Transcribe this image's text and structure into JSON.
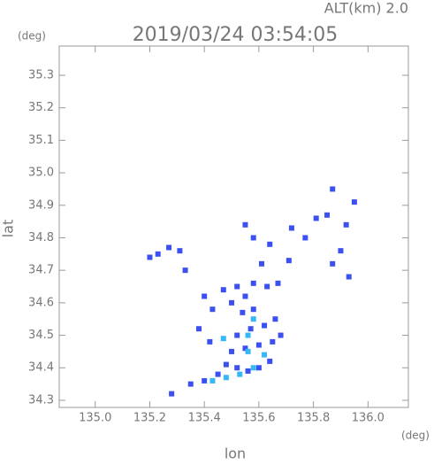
{
  "chart_data": {
    "type": "scatter",
    "title": "2019/03/24 03:54:05",
    "subtitle": "ALT(km) 2.0",
    "x_label": "lon",
    "y_label": "lat",
    "x_unit": "(deg)",
    "y_unit": "(deg)",
    "xlim": [
      134.868,
      136.148
    ],
    "ylim": [
      34.278,
      35.39
    ],
    "xticks": [
      {
        "value": 135.0,
        "label": "135.0"
      },
      135.2,
      135.4,
      135.6,
      135.8,
      {
        "value": 136.0,
        "label": "136.0"
      }
    ],
    "yticks": [
      34.3,
      34.4,
      34.5,
      34.6,
      34.7,
      34.8,
      34.9,
      {
        "value": 35.0,
        "label": "35.0"
      },
      35.1,
      35.2,
      35.3
    ],
    "series": [
      {
        "color": "#3c50f0",
        "x": [
          135.28,
          135.35,
          135.4,
          135.45,
          135.48,
          135.52,
          135.56,
          135.6,
          135.64,
          135.5,
          135.55,
          135.6,
          135.65,
          135.68,
          135.52,
          135.57,
          135.62,
          135.66,
          135.54,
          135.58,
          135.5,
          135.55,
          135.47,
          135.52,
          135.58,
          135.63,
          135.4,
          135.43,
          135.42,
          135.38,
          135.67,
          135.61,
          135.64,
          135.58,
          135.55,
          135.77,
          135.81,
          135.85,
          135.87,
          135.92,
          135.95,
          135.9,
          135.93,
          135.87,
          135.23,
          135.27,
          135.31,
          135.33,
          135.2,
          135.72,
          135.71
        ],
        "y": [
          34.32,
          34.35,
          34.36,
          34.38,
          34.41,
          34.4,
          34.39,
          34.4,
          34.42,
          34.45,
          34.46,
          34.47,
          34.48,
          34.5,
          34.5,
          34.52,
          34.53,
          34.55,
          34.57,
          34.58,
          34.6,
          34.62,
          34.64,
          34.65,
          34.66,
          34.65,
          34.62,
          34.58,
          34.48,
          34.52,
          34.66,
          34.72,
          34.78,
          34.8,
          34.84,
          34.8,
          34.86,
          34.87,
          34.95,
          34.84,
          34.91,
          34.76,
          34.68,
          34.72,
          34.75,
          34.77,
          34.76,
          34.7,
          34.74,
          34.83,
          34.73
        ]
      },
      {
        "color": "#35b8f5",
        "x": [
          135.43,
          135.48,
          135.53,
          135.47,
          135.56,
          135.58,
          135.56,
          135.62,
          135.58
        ],
        "y": [
          34.36,
          34.37,
          34.38,
          34.49,
          34.5,
          34.55,
          34.45,
          34.44,
          34.4
        ]
      }
    ]
  }
}
